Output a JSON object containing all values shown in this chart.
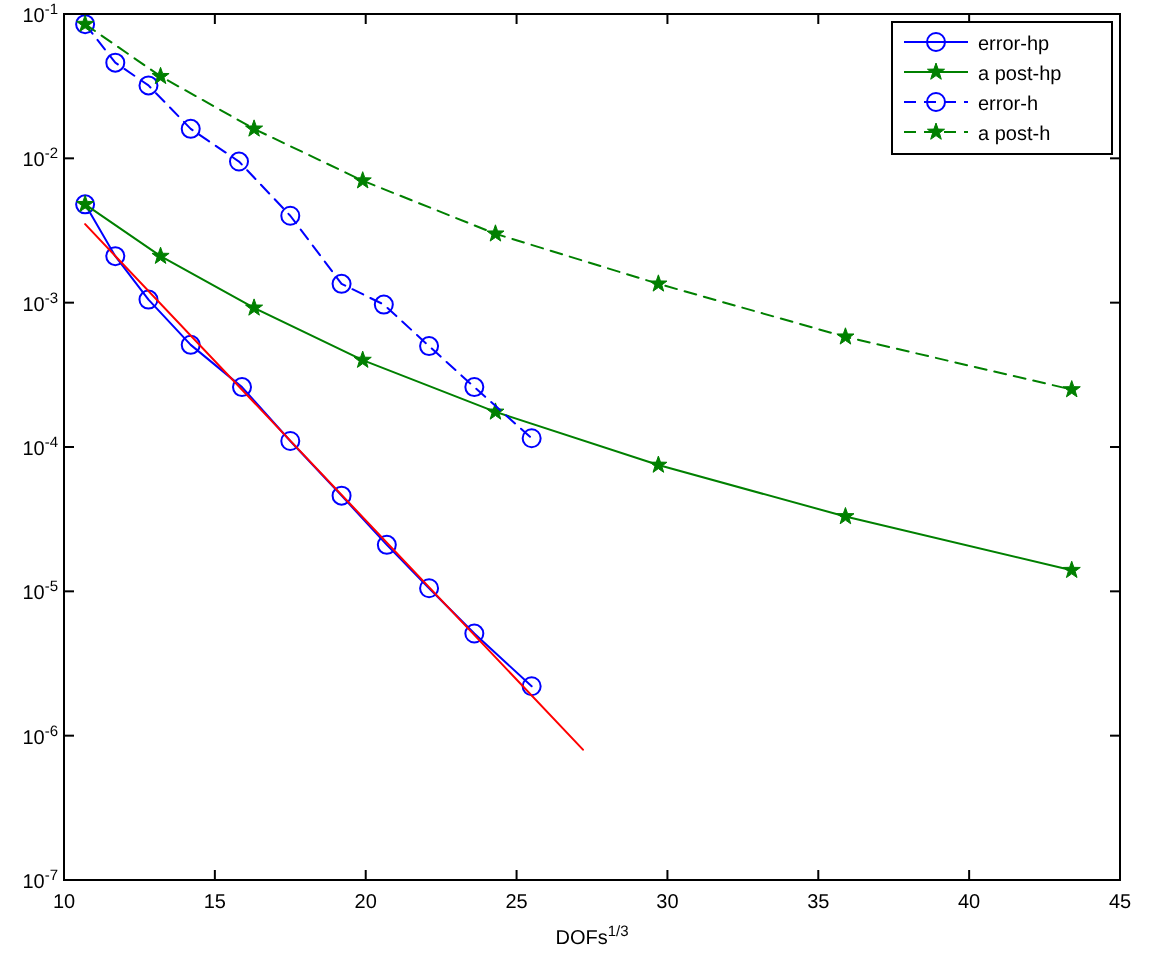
{
  "chart_data": {
    "type": "line",
    "xlabel": "DOFs$^{1/3}$",
    "log": "y",
    "grid": false,
    "legend": "top right",
    "xlim": [
      10,
      45
    ],
    "xticks": [
      10,
      15,
      20,
      25,
      30,
      35,
      40,
      45
    ],
    "ylim": [
      1e-07,
      0.1
    ],
    "yticks": [
      {
        "value": 1e-07,
        "label": "10$^{-7}$"
      },
      {
        "value": 1e-06,
        "label": "10$^{-6}$"
      },
      {
        "value": 1e-05,
        "label": "10$^{-5}$"
      },
      {
        "value": 0.0001,
        "label": "10$^{-4}$"
      },
      {
        "value": 0.001,
        "label": "10$^{-3}$"
      },
      {
        "value": 0.01,
        "label": "10$^{-2}$"
      },
      {
        "value": 0.1,
        "label": "10$^{-1}$"
      }
    ],
    "series": [
      {
        "name": "error-hp",
        "color": "#0000ff",
        "marker": "circle",
        "line_style": "solid",
        "x": [
          10.7,
          11.7,
          12.8,
          14.2,
          15.9,
          17.5,
          19.2,
          20.7,
          22.1,
          23.6,
          25.5
        ],
        "values": [
          0.0048,
          0.0021,
          0.00105,
          0.00051,
          0.00026,
          0.00011,
          4.6e-05,
          2.1e-05,
          1.05e-05,
          5.1e-06,
          2.2e-06
        ]
      },
      {
        "name": "a post-hp",
        "color": "#008000",
        "marker": "star",
        "line_style": "solid",
        "x": [
          10.7,
          13.2,
          16.3,
          19.9,
          24.3,
          29.7,
          35.9,
          43.4
        ],
        "values": [
          0.0048,
          0.0021,
          0.00092,
          0.0004,
          0.000175,
          7.5e-05,
          3.3e-05,
          1.4e-05
        ]
      },
      {
        "name": "error-h",
        "color": "#0000ff",
        "marker": "circle",
        "line_style": "dashed",
        "x": [
          10.7,
          11.7,
          12.8,
          14.2,
          15.8,
          17.5,
          19.2,
          20.6,
          22.1,
          23.6,
          25.5
        ],
        "values": [
          0.085,
          0.046,
          0.032,
          0.016,
          0.0095,
          0.004,
          0.00135,
          0.00097,
          0.0005,
          0.00026,
          0.000115
        ]
      },
      {
        "name": "a post-h",
        "color": "#008000",
        "marker": "star",
        "line_style": "dashed",
        "x": [
          10.7,
          13.2,
          16.3,
          19.9,
          24.3,
          29.7,
          35.9,
          43.4
        ],
        "values": [
          0.085,
          0.037,
          0.016,
          0.007,
          0.003,
          0.00135,
          0.00058,
          0.00025
        ]
      },
      {
        "color": "#ff0000",
        "marker": "none",
        "line_style": "solid",
        "x": [
          10.7,
          27.2
        ],
        "values": [
          0.0035,
          8e-07
        ]
      }
    ]
  }
}
